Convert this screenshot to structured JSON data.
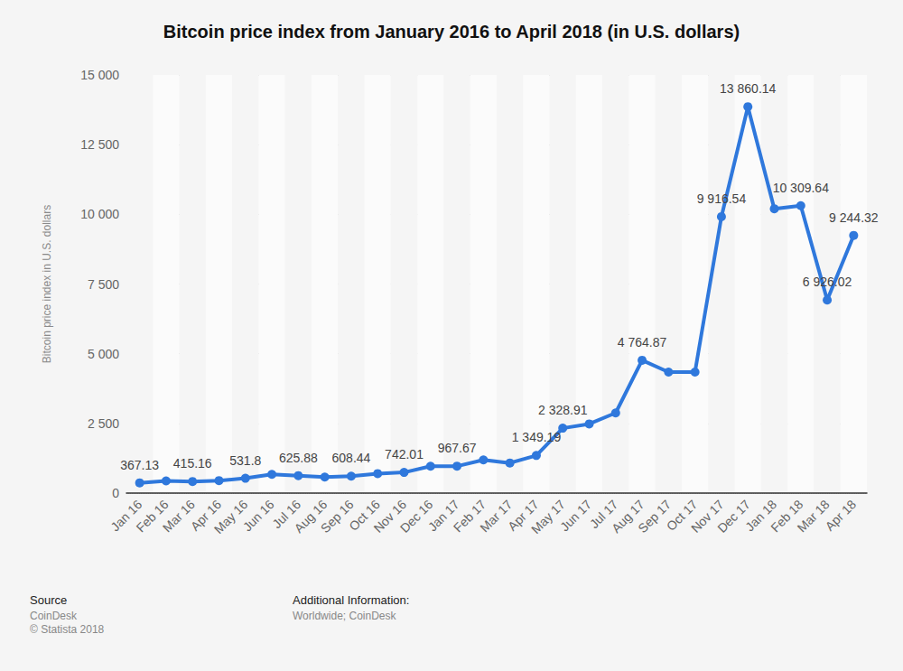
{
  "chart_data": {
    "type": "line",
    "title": "Bitcoin price index from January 2016 to April 2018 (in U.S. dollars)",
    "y_label": "Bitcoin price index in U.S. dollars",
    "categories": [
      "Jan 16",
      "Feb 16",
      "Mar 16",
      "Apr 16",
      "May 16",
      "Jun 16",
      "Jul 16",
      "Aug 16",
      "Sep 16",
      "Oct 16",
      "Nov 16",
      "Dec 16",
      "Jan 17",
      "Feb 17",
      "Mar 17",
      "Apr 17",
      "May 17",
      "Jun 17",
      "Jul 17",
      "Aug 17",
      "Sep 17",
      "Oct 17",
      "Nov 17",
      "Dec 17",
      "Jan 18",
      "Feb 18",
      "Mar 18",
      "Apr 18"
    ],
    "values": [
      367.13,
      437,
      415.16,
      448,
      531.8,
      673,
      625.88,
      575,
      608.44,
      700,
      742.01,
      964,
      967.67,
      1190,
      1080,
      1349.19,
      2328.91,
      2480,
      2875,
      4764.87,
      4340,
      4340,
      9916.54,
      13860.14,
      10200,
      10309.64,
      6926.02,
      9244.32
    ],
    "value_labels": [
      "367.13",
      null,
      "415.16",
      null,
      "531.8",
      null,
      "625.88",
      null,
      "608.44",
      null,
      "742.01",
      null,
      "967.67",
      null,
      null,
      "1 349.19",
      "2 328.91",
      null,
      null,
      "4 764.87",
      null,
      null,
      "9 916.54",
      "13 860.14",
      null,
      "10 309.64",
      "6 926.02",
      "9 244.32"
    ],
    "color": "#2f78dc",
    "marker": "circle",
    "ylim": [
      0,
      15000
    ],
    "yticks": [
      0,
      {
        "value": 2500,
        "label": "2 500"
      },
      {
        "value": 5000,
        "label": "5 000"
      },
      {
        "value": 7500,
        "label": "7 500"
      },
      {
        "value": 10000,
        "label": "10 000"
      },
      {
        "value": 12500,
        "label": "12 500"
      },
      {
        "value": 15000,
        "label": "15 000"
      }
    ],
    "grid": true,
    "data_labels": true,
    "source_label": "Source",
    "source": "CoinDesk",
    "copyright": "© Statista 2018",
    "additional_info_label": "Additional Information:",
    "additional_info": "Worldwide; CoinDesk"
  }
}
